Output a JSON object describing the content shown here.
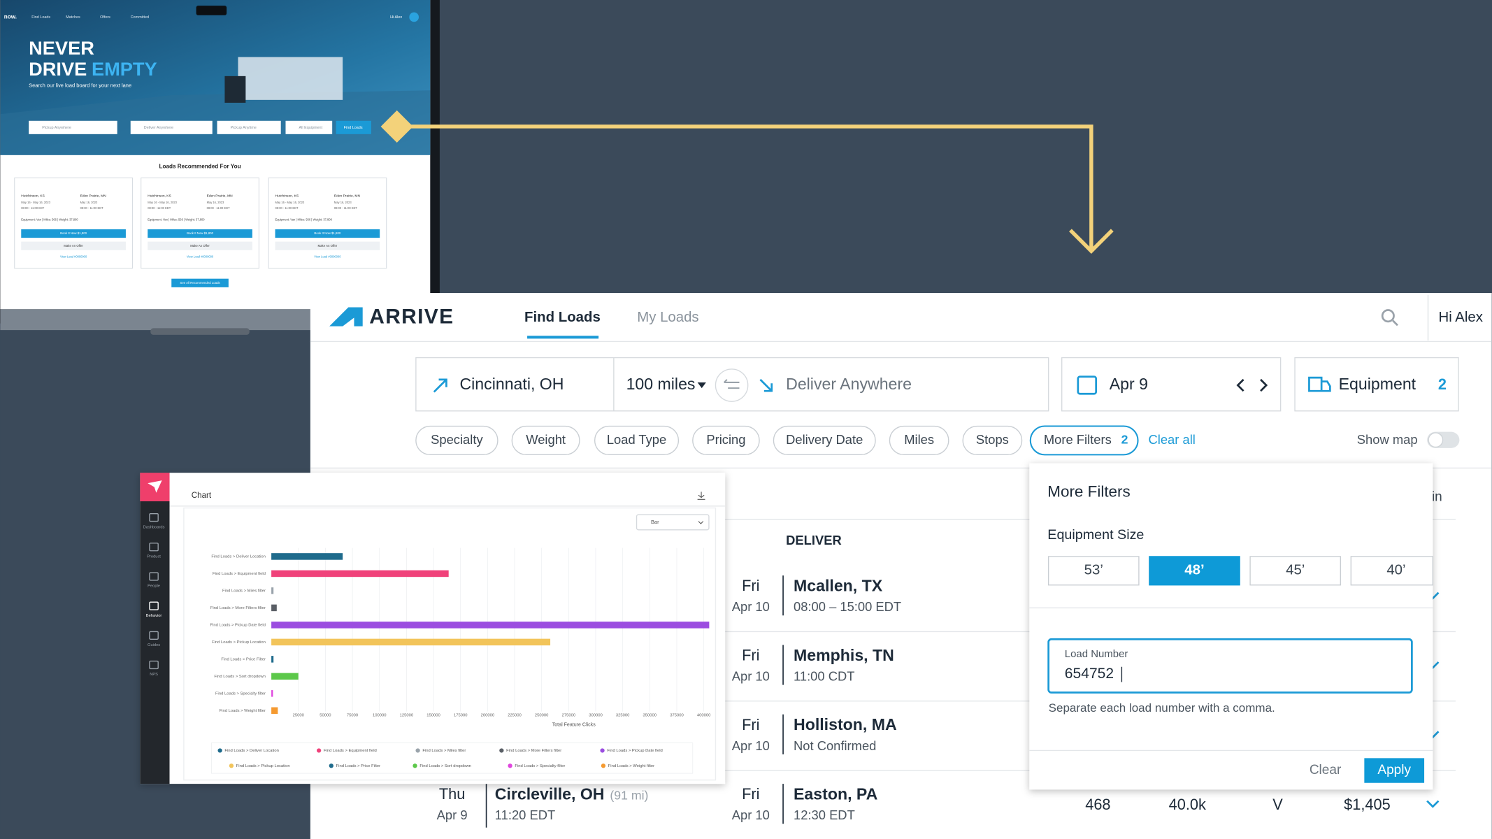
{
  "laptop": {
    "brand": "now.",
    "nav": [
      "Find Loads",
      "Matches",
      "Offers",
      "Committed"
    ],
    "greeting": "Hi Alex",
    "hero": {
      "line1": "NEVER",
      "line2a": "DRIVE",
      "line2b": "EMPTY",
      "subtitle": "Search our live load board for your next lane"
    },
    "search_fields": [
      "Pickup Anywhere",
      "Deliver Anywhere",
      "Pickup Anytime",
      "All Equipment"
    ],
    "search_button": "Find Loads",
    "section_title": "Loads Recommended For You",
    "cards": [
      {
        "origin": "Hutchinson, KS",
        "destination": "Eden Prairie, MN",
        "origin_dates": "May 16 - May 16, 2023",
        "origin_time": "08:00 - 11:00 EDT",
        "destination_dates": "May 16, 2023",
        "destination_time": "08:00 - 11:00 EDT",
        "details": "Equipment: Van | Miles: 566 | Weight: 37,800",
        "book": "Book It Now $1,800",
        "offer": "Make An Offer",
        "link": "View Load #0000000"
      },
      {
        "origin": "Hutchinson, KS",
        "destination": "Eden Prairie, MN",
        "origin_dates": "May 16 - May 16, 2023",
        "origin_time": "08:00 - 11:00 EDT",
        "destination_dates": "May 16, 2023",
        "destination_time": "08:00 - 11:00 EDT",
        "details": "Equipment: Van | Miles: 566 | Weight: 37,800",
        "book": "Book It Now $1,800",
        "offer": "Make An Offer",
        "link": "View Load #0000000"
      },
      {
        "origin": "Hutchinson, KS",
        "destination": "Eden Prairie, MN",
        "origin_dates": "May 16 - May 16, 2023",
        "origin_time": "08:00 - 11:00 EDT",
        "destination_dates": "May 16, 2023",
        "destination_time": "08:00 - 11:00 EDT",
        "details": "Equipment: Van | Miles: 566 | Weight: 37,800",
        "book": "Book It Now $1,800",
        "offer": "Make An Offer",
        "link": "View Load #0000000"
      }
    ],
    "see_all": "See All Recommended Loads"
  },
  "app": {
    "logo": "ARRIVE",
    "tabs": [
      "Find Loads",
      "My Loads"
    ],
    "greeting": "Hi Alex",
    "search": {
      "origin": "Cincinnati, OH",
      "radius": "100 miles",
      "destination": "Deliver Anywhere",
      "date": "Apr 9",
      "equipment": "Equipment",
      "equipment_count": "2"
    },
    "filters": [
      "Specialty",
      "Weight",
      "Load Type",
      "Pricing",
      "Delivery Date",
      "Miles",
      "Stops"
    ],
    "more_filters": "More Filters",
    "more_filters_count": "2",
    "clear_all": "Clear all",
    "show_map": "Show map",
    "partial_header": "in",
    "deliver_header": "DELIVER",
    "rows": [
      {
        "day": "Fri",
        "date": "Apr 10",
        "city": "Mcallen, TX",
        "time": "08:00 – 15:00 EDT"
      },
      {
        "day": "Fri",
        "date": "Apr 10",
        "city": "Memphis, TN",
        "time": "11:00 CDT"
      },
      {
        "day": "Fri",
        "date": "Apr 10",
        "city": "Holliston, MA",
        "time": "Not Confirmed"
      },
      {
        "day": "Fri",
        "date": "Apr 10",
        "city": "Easton, PA",
        "time": "12:30 EDT"
      }
    ],
    "last_pickup": {
      "day": "Thu",
      "date": "Apr 9",
      "city": "Circleville, OH",
      "distance": "(91 mi)",
      "time": "11:20 EDT"
    },
    "last_stats": [
      "468",
      "40.0k",
      "V",
      "$1,405"
    ]
  },
  "filters_popup": {
    "title": "More Filters",
    "size_label": "Equipment Size",
    "sizes": [
      "53’",
      "48’",
      "45’",
      "40’"
    ],
    "selected_size": 1,
    "load_label": "Load Number",
    "load_value": "654752",
    "hint": "Separate each load number with a comma.",
    "clear": "Clear",
    "apply": "Apply"
  },
  "analytics": {
    "nav": [
      "Dashboards",
      "Product",
      "People",
      "Behavior",
      "Guides",
      "NPS"
    ],
    "active_nav": 3,
    "panel_title": "Chart",
    "select": "Bar"
  },
  "chart_data": {
    "type": "bar",
    "orientation": "horizontal",
    "categories": [
      "Find Loads > Deliver Location",
      "Find Loads > Equipment field",
      "Find Loads > Miles filter",
      "Find Loads > More Filters filter",
      "Find Loads > Pickup Date field",
      "Find Loads > Pickup Location",
      "Find Loads > Price Filter",
      "Find Loads > Sort dropdown",
      "Find Loads > Specialty filter",
      "Find Loads > Weight filter"
    ],
    "values": [
      66000,
      164000,
      2000,
      5000,
      405000,
      258000,
      2000,
      25000,
      1500,
      6000
    ],
    "colors": [
      "#1f6b8c",
      "#f0427a",
      "#9aa3ab",
      "#5a5f66",
      "#9b4de0",
      "#f2c45a",
      "#1f6b8c",
      "#5cc84a",
      "#e046de",
      "#f59a30"
    ],
    "xlabel": "Total Feature Clicks",
    "xlim": [
      0,
      410000
    ],
    "xticks": [
      25000,
      50000,
      75000,
      100000,
      125000,
      150000,
      175000,
      200000,
      225000,
      250000,
      275000,
      300000,
      325000,
      350000,
      375000,
      400000
    ],
    "grid": true
  }
}
